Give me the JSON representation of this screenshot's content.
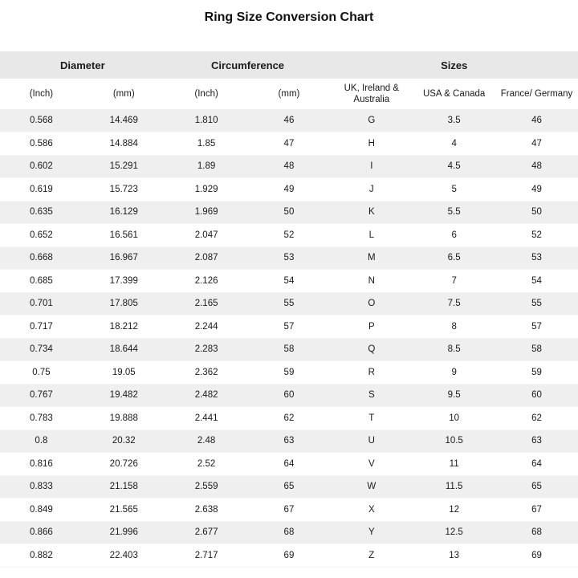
{
  "chart_data": {
    "type": "table",
    "title": "Ring Size Conversion Chart",
    "group_headers": [
      {
        "label": "Diameter",
        "span": 2
      },
      {
        "label": "Circumference",
        "span": 2
      },
      {
        "label": "Sizes",
        "span": 3
      }
    ],
    "columns": [
      "(Inch)",
      "(mm)",
      "(Inch)",
      "(mm)",
      "UK, Ireland & Australia",
      "USA & Canada",
      "France/ Germany"
    ],
    "column_keys": [
      "diameter-inch",
      "diameter-mm",
      "circumference-inch",
      "circumference-mm",
      "uk-ireland-australia",
      "usa-canada",
      "france-germany"
    ],
    "rows": [
      [
        "0.568",
        "14.469",
        "1.810",
        "46",
        "G",
        "3.5",
        "46"
      ],
      [
        "0.586",
        "14.884",
        "1.85",
        "47",
        "H",
        "4",
        "47"
      ],
      [
        "0.602",
        "15.291",
        "1.89",
        "48",
        "I",
        "4.5",
        "48"
      ],
      [
        "0.619",
        "15.723",
        "1.929",
        "49",
        "J",
        "5",
        "49"
      ],
      [
        "0.635",
        "16.129",
        "1.969",
        "50",
        "K",
        "5.5",
        "50"
      ],
      [
        "0.652",
        "16.561",
        "2.047",
        "52",
        "L",
        "6",
        "52"
      ],
      [
        "0.668",
        "16.967",
        "2.087",
        "53",
        "M",
        "6.5",
        "53"
      ],
      [
        "0.685",
        "17.399",
        "2.126",
        "54",
        "N",
        "7",
        "54"
      ],
      [
        "0.701",
        "17.805",
        "2.165",
        "55",
        "O",
        "7.5",
        "55"
      ],
      [
        "0.717",
        "18.212",
        "2.244",
        "57",
        "P",
        "8",
        "57"
      ],
      [
        "0.734",
        "18.644",
        "2.283",
        "58",
        "Q",
        "8.5",
        "58"
      ],
      [
        "0.75",
        "19.05",
        "2.362",
        "59",
        "R",
        "9",
        "59"
      ],
      [
        "0.767",
        "19.482",
        "2.482",
        "60",
        "S",
        "9.5",
        "60"
      ],
      [
        "0.783",
        "19.888",
        "2.441",
        "62",
        "T",
        "10",
        "62"
      ],
      [
        "0.8",
        "20.32",
        "2.48",
        "63",
        "U",
        "10.5",
        "63"
      ],
      [
        "0.816",
        "20.726",
        "2.52",
        "64",
        "V",
        "11",
        "64"
      ],
      [
        "0.833",
        "21.158",
        "2.559",
        "65",
        "W",
        "11.5",
        "65"
      ],
      [
        "0.849",
        "21.565",
        "2.638",
        "67",
        "X",
        "12",
        "67"
      ],
      [
        "0.866",
        "21.996",
        "2.677",
        "68",
        "Y",
        "12.5",
        "68"
      ],
      [
        "0.882",
        "22.403",
        "2.717",
        "69",
        "Z",
        "13",
        "69"
      ]
    ],
    "layout": {
      "stripe_pattern": "odd rows shaded starting with first data row",
      "grid": "off",
      "columns_equal_width": true
    }
  },
  "colors": {
    "header_band_bg": "#e8e8e8",
    "row_stripe_bg": "#efefef",
    "text": "#1a1a1a",
    "background": "#ffffff"
  }
}
